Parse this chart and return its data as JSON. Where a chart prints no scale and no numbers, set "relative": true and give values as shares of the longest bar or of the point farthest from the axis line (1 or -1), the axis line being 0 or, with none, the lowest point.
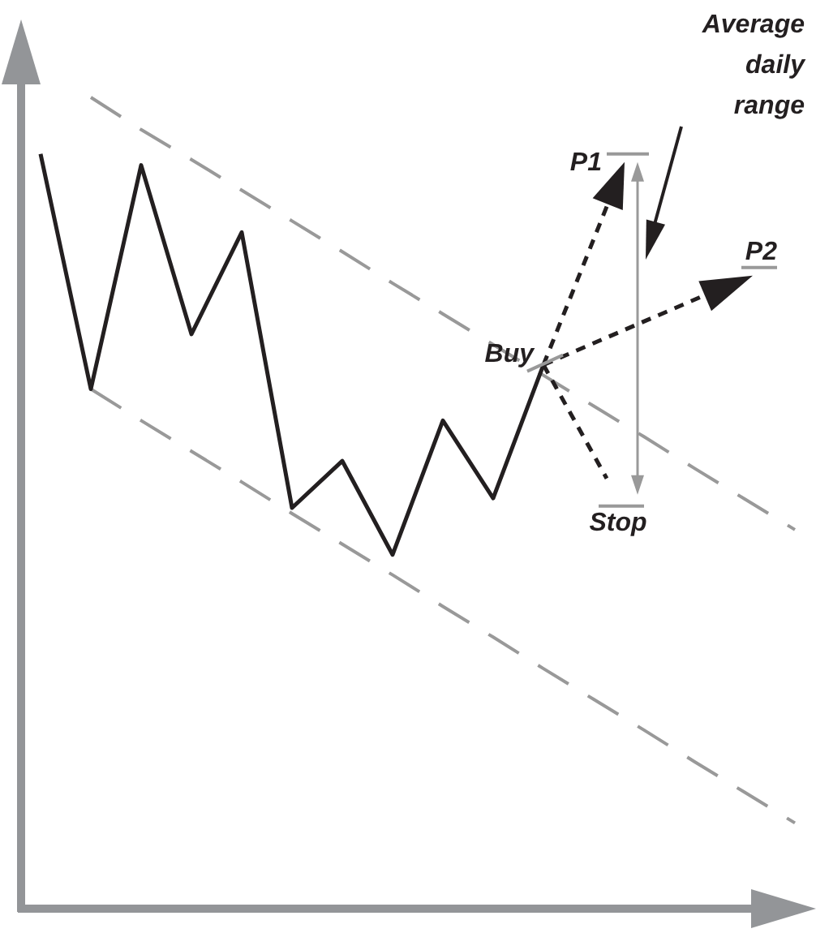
{
  "chart_data": {
    "type": "line",
    "relative": true,
    "categories": [
      null,
      null,
      null,
      null,
      null,
      null,
      null,
      null,
      null,
      null,
      null,
      null,
      null,
      null,
      null,
      null
    ],
    "series": [
      {
        "color": "#231f20",
        "line_style": "solid",
        "values": [
          0.93,
          0.639,
          0.916,
          0.707,
          0.833,
          0.492,
          0.55,
          0.434,
          0.6,
          0.504,
          0.669,
          null,
          null,
          null,
          null,
          null
        ]
      },
      {
        "color": "#999999",
        "line_style": "dashed",
        "values": [
          null,
          1.0,
          0.96,
          0.923,
          0.885,
          0.847,
          0.809,
          0.77,
          0.732,
          0.694,
          0.656,
          0.618,
          0.58,
          0.541,
          0.503,
          0.465
        ]
      },
      {
        "color": "#999999",
        "line_style": "dashed",
        "values": [
          null,
          0.639,
          0.6,
          0.562,
          0.524,
          0.485,
          0.447,
          0.409,
          0.37,
          0.332,
          0.293,
          0.255,
          0.217,
          0.178,
          0.14,
          0.102
        ]
      }
    ],
    "annotations": [
      "Buy",
      "P1",
      "P2",
      "Stop",
      "Average daily range"
    ]
  }
}
